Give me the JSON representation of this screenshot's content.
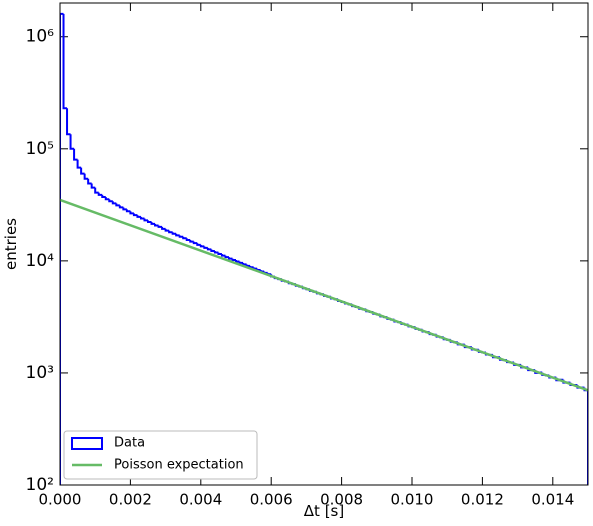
{
  "chart_data": {
    "type": "histogram",
    "xlabel": "Δt [s]",
    "ylabel": "entries",
    "xlim": [
      0,
      0.015
    ],
    "ylim": [
      100,
      2000000
    ],
    "yscale": "log",
    "xticks": [
      {
        "value": 0,
        "label": "0.000"
      },
      {
        "value": 0.002,
        "label": "0.002"
      },
      {
        "value": 0.004,
        "label": "0.004"
      },
      {
        "value": 0.006,
        "label": "0.006"
      },
      {
        "value": 0.008,
        "label": "0.008"
      },
      {
        "value": 0.01,
        "label": "0.010"
      },
      {
        "value": 0.012,
        "label": "0.012"
      },
      {
        "value": 0.014,
        "label": "0.014"
      }
    ],
    "yticks": [
      {
        "value": 100,
        "label": "10²"
      },
      {
        "value": 1000,
        "label": "10³"
      },
      {
        "value": 10000,
        "label": "10⁴"
      },
      {
        "value": 100000,
        "label": "10⁵"
      },
      {
        "value": 1000000,
        "label": "10⁶"
      }
    ],
    "legend": "lower left",
    "bins": [
      0,
      0.0001,
      0.0002,
      0.0003,
      0.0004,
      0.0005,
      0.0006,
      0.0007,
      0.0008,
      0.0009,
      0.001,
      0.0011,
      0.0012,
      0.0013,
      0.0014,
      0.0015,
      0.0016,
      0.0017,
      0.0018,
      0.0019,
      0.002,
      0.0021,
      0.0022,
      0.0023,
      0.0024,
      0.0025,
      0.0026,
      0.0027,
      0.0028,
      0.0029,
      0.003,
      0.0031,
      0.0032,
      0.0033,
      0.0034,
      0.0035,
      0.0036,
      0.0037,
      0.0038,
      0.0039,
      0.004,
      0.0041,
      0.0042,
      0.0043,
      0.0044,
      0.0045,
      0.0046,
      0.0047,
      0.0048,
      0.0049,
      0.005,
      0.0051,
      0.0052,
      0.0053,
      0.0054,
      0.0055,
      0.0056,
      0.0057,
      0.0058,
      0.0059,
      0.006,
      0.0061,
      0.0062,
      0.0063,
      0.0064,
      0.0065,
      0.0066,
      0.0067,
      0.0068,
      0.0069,
      0.007,
      0.0071,
      0.0072,
      0.0073,
      0.0074,
      0.0075,
      0.0076,
      0.0077,
      0.0078,
      0.0079,
      0.008,
      0.0081,
      0.0082,
      0.0083,
      0.0084,
      0.0085,
      0.0086,
      0.0087,
      0.0088,
      0.0089,
      0.009,
      0.0091,
      0.0092,
      0.0093,
      0.0094,
      0.0095,
      0.0096,
      0.0097,
      0.0098,
      0.0099,
      0.01,
      0.0101,
      0.0102,
      0.0103,
      0.0104,
      0.0105,
      0.0106,
      0.0107,
      0.0108,
      0.0109,
      0.011,
      0.0111,
      0.0112,
      0.0113,
      0.0114,
      0.0115,
      0.0116,
      0.0117,
      0.0118,
      0.0119,
      0.012,
      0.0121,
      0.0122,
      0.0123,
      0.0124,
      0.0125,
      0.0126,
      0.0127,
      0.0128,
      0.0129,
      0.013,
      0.0131,
      0.0132,
      0.0133,
      0.0134,
      0.0135,
      0.0136,
      0.0137,
      0.0138,
      0.0139,
      0.014,
      0.0141,
      0.0142,
      0.0143,
      0.0144,
      0.0145,
      0.0146,
      0.0147,
      0.0148,
      0.0149,
      0.015
    ],
    "series": [
      {
        "name": "Data",
        "type": "histogram",
        "color": "#0000ff",
        "values": [
          1600000,
          230000,
          135000,
          100000,
          80000,
          68000,
          60000,
          54000,
          49000,
          45000,
          40600,
          38800,
          37100,
          35500,
          34000,
          32600,
          31300,
          30000,
          28800,
          27700,
          26500,
          25600,
          24700,
          23900,
          23000,
          22200,
          21400,
          20700,
          20100,
          19300,
          18600,
          18000,
          17450,
          16900,
          16400,
          15900,
          15350,
          14850,
          14400,
          13900,
          13470,
          13060,
          12650,
          12260,
          11870,
          11510,
          11150,
          10810,
          10480,
          10180,
          9880,
          9590,
          9300,
          9030,
          8770,
          8520,
          8280,
          8040,
          7810,
          7600,
          7250,
          7010,
          6880,
          6650,
          6540,
          6320,
          6200,
          6000,
          5890,
          5700,
          5580,
          5400,
          5300,
          5130,
          5030,
          4870,
          4780,
          4620,
          4540,
          4380,
          4300,
          4160,
          4090,
          3950,
          3880,
          3740,
          3690,
          3550,
          3500,
          3370,
          3320,
          3200,
          3150,
          3040,
          2990,
          2880,
          2840,
          2740,
          2700,
          2600,
          2560,
          2470,
          2430,
          2340,
          2310,
          2220,
          2190,
          2110,
          2080,
          2000,
          1970,
          1900,
          1880,
          1800,
          1790,
          1700,
          1700,
          1620,
          1610,
          1540,
          1520,
          1460,
          1450,
          1380,
          1380,
          1310,
          1300,
          1250,
          1240,
          1180,
          1180,
          1120,
          1120,
          1060,
          1060,
          1000,
          1010,
          960,
          950,
          910,
          910,
          860,
          870,
          820,
          820,
          780,
          780,
          740,
          740,
          700
        ]
      },
      {
        "name": "Poisson expectation",
        "type": "line",
        "color": "#66bb66",
        "x": [
          0,
          0.015
        ],
        "values": [
          35000,
          700
        ]
      }
    ]
  }
}
